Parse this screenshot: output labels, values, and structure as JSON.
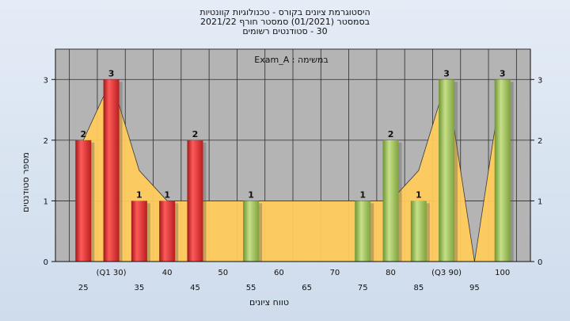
{
  "chart_data": {
    "type": "bar",
    "title_lines": [
      "היסטוגרמת ציונים בקורס - טכנולוגיות קוונטיות",
      "בסמסטר  (01/2021)  סמסטר חורף 2021/22",
      "30 - סטודנטים רשומים"
    ],
    "annotation": "במשימה : Exam_A",
    "xlabel": "טווח ציונים",
    "ylabel": "מספר סטודנטים",
    "ylim": [
      0,
      3.5
    ],
    "yticks": [
      "0",
      "1",
      "2",
      "3"
    ],
    "x": [
      25,
      30,
      35,
      40,
      45,
      50,
      55,
      60,
      65,
      70,
      75,
      80,
      85,
      90,
      95,
      100
    ],
    "x_tick_labels": [
      "25",
      "(Q1 30)",
      "35",
      "40",
      "45",
      "50",
      "55",
      "60",
      "65",
      "70",
      "75",
      "80",
      "85",
      "(Q3 90)",
      "95",
      "100"
    ],
    "values": [
      2,
      3,
      1,
      1,
      2,
      0,
      1,
      0,
      0,
      0,
      1,
      2,
      1,
      3,
      0,
      3
    ],
    "value_labels": [
      "2",
      "3",
      "1",
      "1",
      "2",
      "",
      "1",
      "",
      "",
      "",
      "1",
      "2",
      "1",
      "3",
      "",
      "3"
    ],
    "bar_color_group": [
      "red",
      "red",
      "red",
      "red",
      "red",
      "",
      "green",
      "",
      "",
      "",
      "green",
      "green",
      "green",
      "green",
      "",
      "green"
    ],
    "area_band": {
      "values": [
        2,
        3,
        1.5,
        1,
        1,
        1,
        1,
        1,
        1,
        1,
        1,
        1,
        1.5,
        3,
        0,
        3
      ]
    },
    "colors": {
      "red": "#e03434",
      "green": "#9fc25a",
      "area": "#ffcc5c",
      "plot_bg": "#b4b4b4",
      "grid": "#2a2a2a"
    },
    "grid": true,
    "legend": "none"
  }
}
